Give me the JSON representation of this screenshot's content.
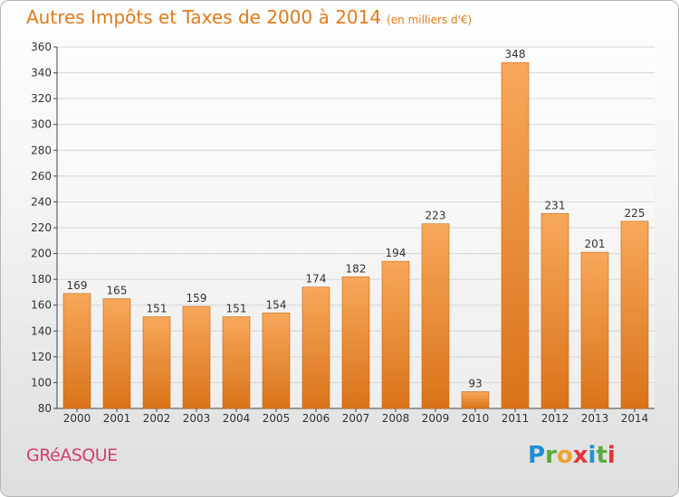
{
  "header": {
    "title": "Autres Impôts et Taxes de 2000 à 2014",
    "unit": "(en milliers d'€)"
  },
  "footer": {
    "commune": "GRéASQUE",
    "logo_letters": [
      "P",
      "r",
      "o",
      "x",
      "i",
      "t",
      "i"
    ],
    "logo_colors": [
      "#1f8fd6",
      "#5aa93d",
      "#f0a22a",
      "#e5333a",
      "#1f8fd6",
      "#5aa93d",
      "#e5333a"
    ]
  },
  "colors": {
    "bar_top": "#f7a85a",
    "bar_bottom": "#d9731a",
    "bar_edge": "#c96712",
    "grid": "#d6d6d6",
    "axis": "#444444",
    "text": "#333333"
  },
  "chart_data": {
    "type": "bar",
    "title": "Autres Impôts et Taxes de 2000 à 2014",
    "categories": [
      "2000",
      "2001",
      "2002",
      "2003",
      "2004",
      "2005",
      "2006",
      "2007",
      "2008",
      "2009",
      "2010",
      "2011",
      "2012",
      "2013",
      "2014"
    ],
    "values": [
      169,
      165,
      151,
      159,
      151,
      154,
      174,
      182,
      194,
      223,
      93,
      348,
      231,
      201,
      225
    ],
    "ylim": [
      80,
      360
    ],
    "yticks": [
      80,
      100,
      120,
      140,
      160,
      180,
      200,
      220,
      240,
      260,
      280,
      300,
      320,
      340,
      360
    ],
    "grid": true,
    "xlabel": "",
    "ylabel": ""
  }
}
